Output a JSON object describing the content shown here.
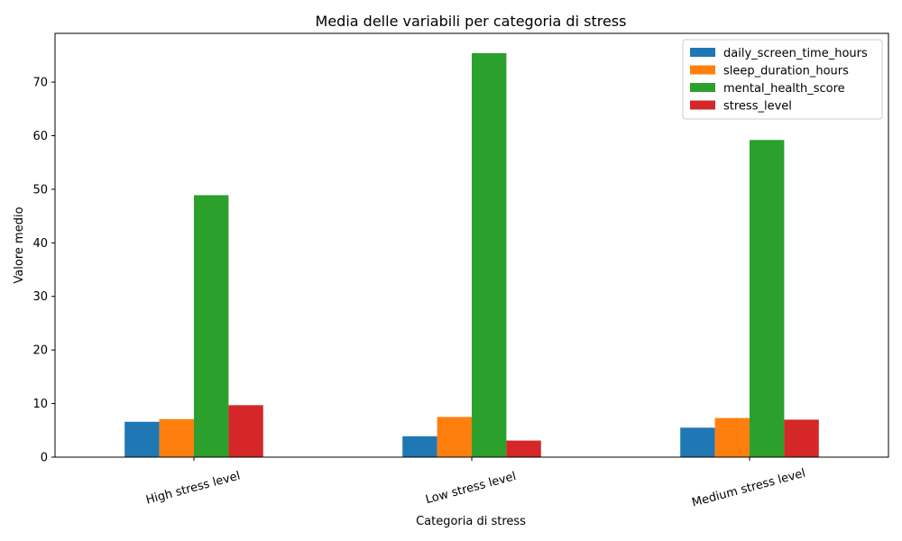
{
  "chart_data": {
    "type": "bar",
    "title": "Media delle variabili per categoria di stress",
    "xlabel": "Categoria di stress",
    "ylabel": "Valore medio",
    "categories": [
      "High stress level",
      "Low stress level",
      "Medium stress level"
    ],
    "series": [
      {
        "name": "daily_screen_time_hours",
        "color": "#1f77b4",
        "values": [
          6.6,
          3.9,
          5.5
        ]
      },
      {
        "name": "sleep_duration_hours",
        "color": "#ff7f0e",
        "values": [
          7.1,
          7.5,
          7.3
        ]
      },
      {
        "name": "mental_health_score",
        "color": "#2ca02c",
        "values": [
          48.9,
          75.4,
          59.2
        ]
      },
      {
        "name": "stress_level",
        "color": "#d62728",
        "values": [
          9.7,
          3.1,
          7.0
        ]
      }
    ],
    "ylim": [
      0,
      79.1
    ],
    "yticks": [
      0,
      10,
      20,
      30,
      40,
      50,
      60,
      70
    ],
    "xtick_rotation_deg": -15,
    "grid": false,
    "legend_position": "top-right"
  }
}
